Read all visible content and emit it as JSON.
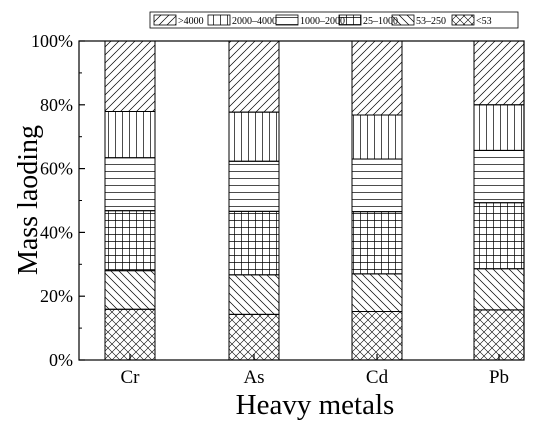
{
  "chart_data": {
    "type": "bar",
    "stacked": true,
    "title": "",
    "xlabel": "Heavy metals",
    "ylabel": "Mass laoding",
    "categories": [
      "Cr",
      "As",
      "Cd",
      "Pb"
    ],
    "ylim": [
      0,
      100
    ],
    "y_ticks": [
      "0%",
      "20%",
      "40%",
      "60%",
      "80%",
      "100%"
    ],
    "grid": false,
    "legend_position": "top",
    "series": [
      {
        "name": "<53",
        "pattern": "crosshatch-diagonal",
        "values": [
          15.9,
          14.3,
          15.2,
          15.7
        ]
      },
      {
        "name": "53–250",
        "pattern": "diagonal-back",
        "values": [
          12.1,
          12.4,
          11.8,
          12.9
        ]
      },
      {
        "name": "25–1000",
        "pattern": "grid",
        "values": [
          18.8,
          19.9,
          19.5,
          20.7
        ]
      },
      {
        "name": "1000–2000",
        "pattern": "horizontal",
        "values": [
          16.6,
          15.7,
          16.5,
          16.4
        ]
      },
      {
        "name": "2000–4000",
        "pattern": "vertical",
        "values": [
          14.5,
          15.4,
          13.8,
          14.3
        ]
      },
      {
        "name": ">4000",
        "pattern": "diagonal-forward",
        "values": [
          22.1,
          22.3,
          23.2,
          20.0
        ]
      }
    ],
    "legend_order": [
      ">4000",
      "2000–4000",
      "1000–2000",
      "25–1000",
      "53–250",
      "<53"
    ]
  }
}
